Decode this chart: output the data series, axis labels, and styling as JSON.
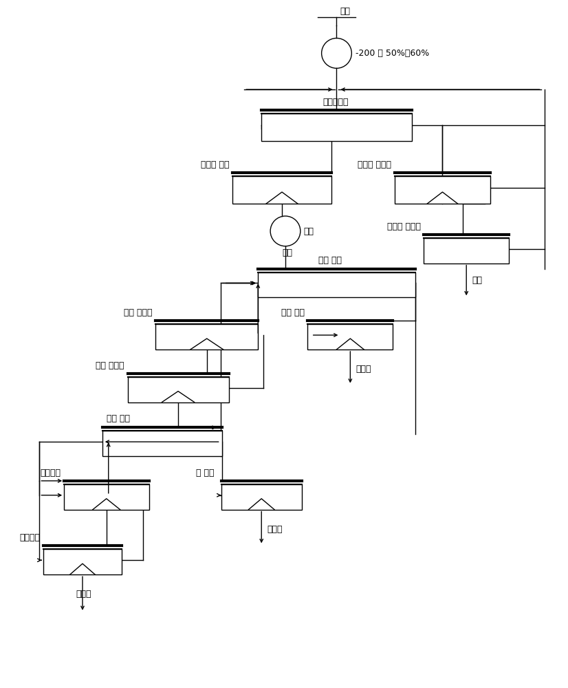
{
  "labels": {
    "yuankuang": "原矿",
    "grind_note": "-200 目 50%～60%",
    "quanhunzu": "全混浮粗选",
    "quanhunjing": "全混浮 精选",
    "remill": "再磨",
    "tuza": "脱杂",
    "sao1": "全混浮 扫选一",
    "sao2": "全混浮 扫选二",
    "weikuang": "尾矿",
    "qianliuzu": "铅硫 粗选",
    "qianliujing1": "铅硫 精选一",
    "qianliusao": "铅硫 扫选",
    "xinjing": "锌精矿",
    "qianliujing2": "铅硫 精选二",
    "qianliufen": "铅硫 分离",
    "qiansao": "铅 扫选",
    "qianjing1": "铅精选一",
    "liujing": "硫精矿",
    "qianjing2": "铅精选二",
    "qianjing": "铅精矿"
  },
  "fontsize": 9,
  "lw_thick": 3.0,
  "lw_mid": 1.5,
  "lw_thin": 1.0
}
